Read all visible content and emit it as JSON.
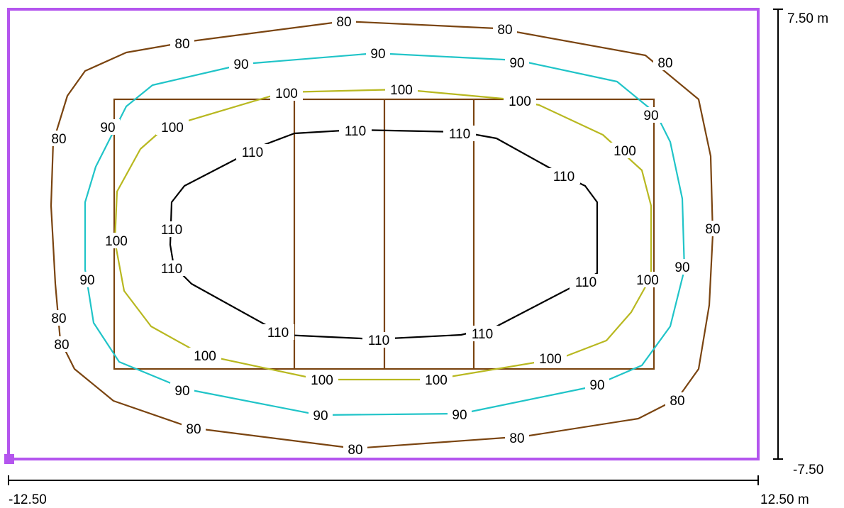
{
  "colors": {
    "boundary": "#b455ee",
    "court": "#7a4410",
    "level_80": "#7a4410",
    "level_90": "#20c4c8",
    "level_100": "#b8b820",
    "level_110": "#000000",
    "axis": "#000000"
  },
  "axes": {
    "x_min_label": "-12.50",
    "x_max_label": "12.50 m",
    "y_max_label": "7.50 m",
    "y_min_label": "-7.50"
  },
  "contour_labels": {
    "level_80": "80",
    "level_90": "90",
    "level_100": "100",
    "level_110": "110"
  }
}
